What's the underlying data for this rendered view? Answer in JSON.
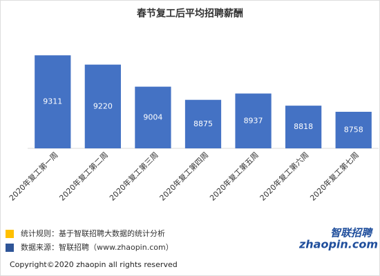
{
  "chart_data": {
    "type": "bar",
    "title": "春节复工后平均招聘薪酬",
    "categories": [
      "2020年复工第一周",
      "2020年复工第二周",
      "2020年复工第三周",
      "2020年复工第四周",
      "2020年复工第五周",
      "2020年复工第六周",
      "2020年复工第七周"
    ],
    "values": [
      9311,
      9220,
      9004,
      8875,
      8937,
      8818,
      8758
    ],
    "color": "#4472c4",
    "ylim": [
      8400,
      9400
    ]
  },
  "notes": [
    {
      "text": "统计规则：基于智联招聘大数据的统计分析",
      "color": "#ffc000"
    },
    {
      "text": "数据来源：智联招聘（www.zhaopin.com）",
      "color": "#2f5597"
    }
  ],
  "logo": {
    "name": "智联招聘",
    "site": "zhaopin.com"
  },
  "copyright": "Copyright©2020 zhaopin all rights reserved"
}
